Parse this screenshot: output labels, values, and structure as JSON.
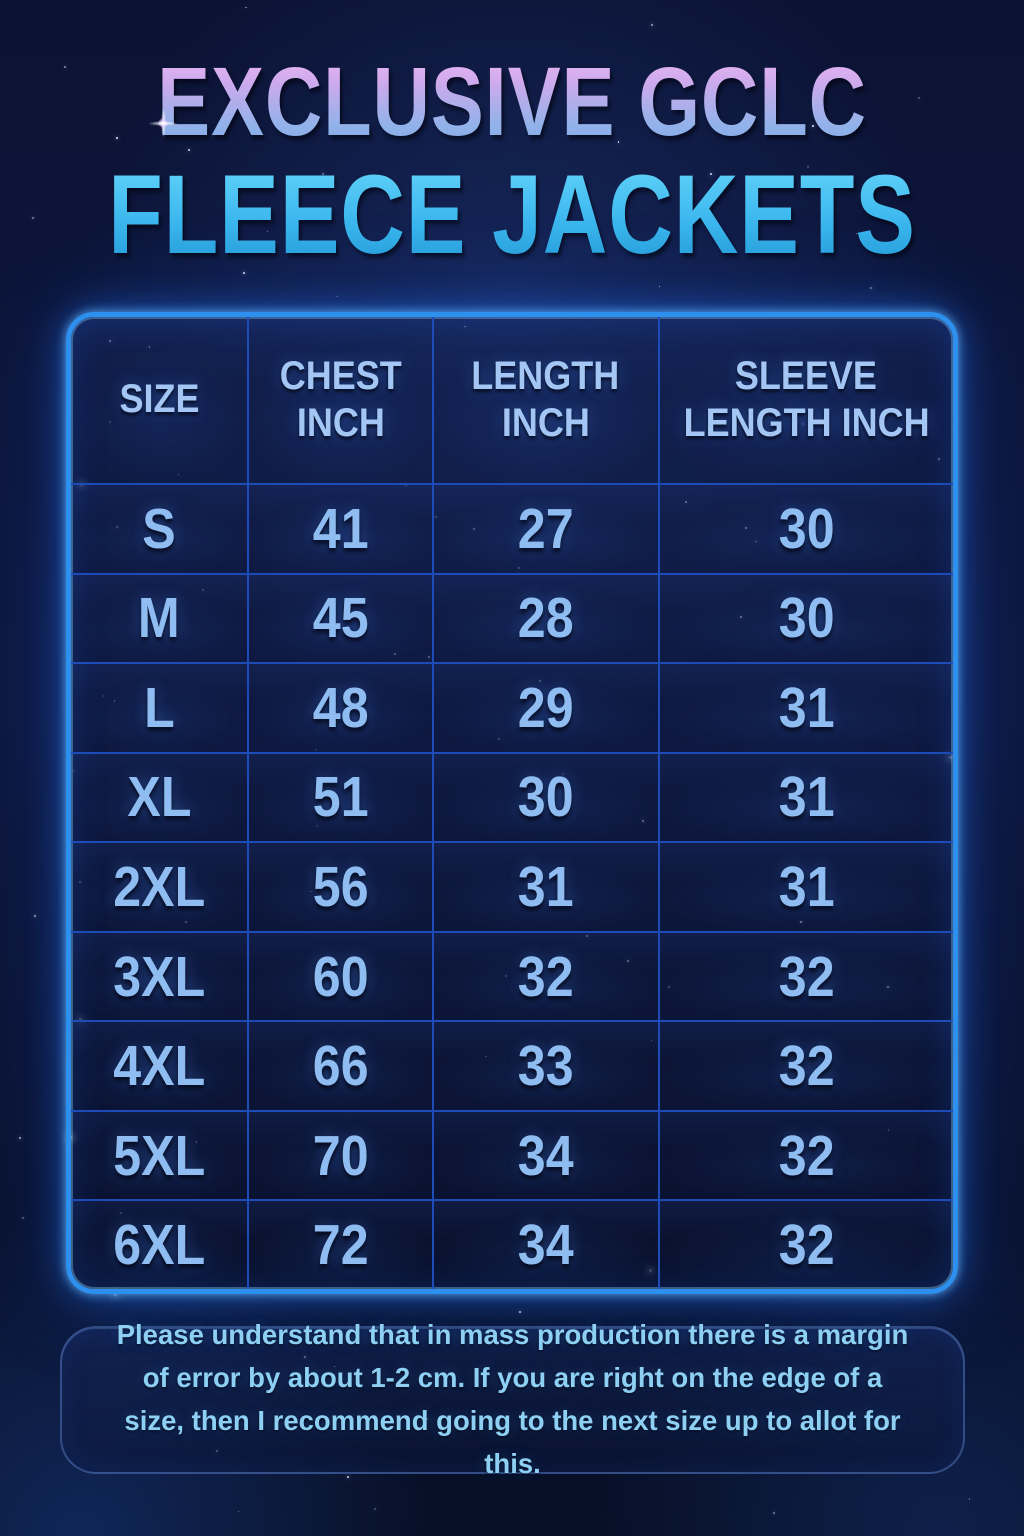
{
  "title": {
    "line1": "EXCLUSIVE GCLC",
    "line2": "FLEECE JACKETS"
  },
  "table": {
    "headers": [
      {
        "line1": "SIZE",
        "line2": ""
      },
      {
        "line1": "CHEST",
        "line2": "INCH"
      },
      {
        "line1": "LENGTH",
        "line2": "INCH"
      },
      {
        "line1": "SLEEVE",
        "line2": "LENGTH INCH"
      }
    ]
  },
  "chart_data": {
    "type": "table",
    "title": "EXCLUSIVE GCLC FLEECE JACKETS",
    "columns": [
      "SIZE",
      "CHEST INCH",
      "LENGTH INCH",
      "SLEEVE LENGTH INCH"
    ],
    "rows": [
      [
        "S",
        41,
        27,
        30
      ],
      [
        "M",
        45,
        28,
        30
      ],
      [
        "L",
        48,
        29,
        31
      ],
      [
        "XL",
        51,
        30,
        31
      ],
      [
        "2XL",
        56,
        31,
        31
      ],
      [
        "3XL",
        60,
        32,
        32
      ],
      [
        "4XL",
        66,
        33,
        32
      ],
      [
        "5XL",
        70,
        34,
        32
      ],
      [
        "6XL",
        72,
        34,
        32
      ]
    ]
  },
  "note": "Please understand that in mass production there is a margin of error by about 1-2 cm. If you are right on the edge of a size, then I recommend going to the next size up to allot for this.",
  "colors": {
    "background": "#0c1538",
    "table_border": "#2e90ee",
    "grid_line": "#1d4cb8",
    "cell_text": "#8fbdf2",
    "header_text": "#a3c6f5",
    "title_pink": "#efb6f4",
    "title_periwinkle": "#7fa7e5",
    "title_cyan": "#3cb7ee",
    "note_text": "#8dd0f3"
  }
}
